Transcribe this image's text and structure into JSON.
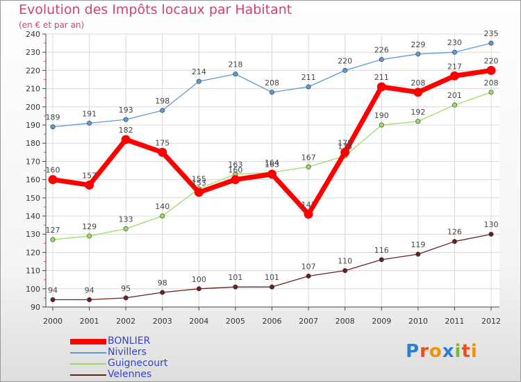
{
  "title": "Evolution des Impôts locaux par Habitant",
  "subtitle": "(en € et par an)",
  "logo": "Proxiti",
  "chart_data": {
    "type": "line",
    "title": "Evolution des Impôts locaux par Habitant",
    "subtitle": "(en € et par an)",
    "xlabel": "",
    "ylabel": "",
    "x": [
      "2000",
      "2001",
      "2002",
      "2003",
      "2004",
      "2005",
      "2006",
      "2007",
      "2008",
      "2009",
      "2010",
      "2011",
      "2012"
    ],
    "ylim": [
      90,
      240
    ],
    "yticks": [
      90,
      100,
      110,
      120,
      130,
      140,
      150,
      160,
      170,
      180,
      190,
      200,
      210,
      220,
      230,
      240
    ],
    "grid": true,
    "legend_position": "bottom-left",
    "series": [
      {
        "name": "BONLIER",
        "color": "#ff0000",
        "values": [
          160,
          157,
          182,
          175,
          153,
          160,
          163,
          141,
          175,
          211,
          208,
          217,
          220
        ]
      },
      {
        "name": "Nivillers",
        "color": "#5b9bd5",
        "values": [
          189,
          191,
          193,
          198,
          214,
          218,
          208,
          211,
          220,
          226,
          229,
          230,
          235
        ]
      },
      {
        "name": "Guignecourt",
        "color": "#99dd66",
        "values": [
          127,
          129,
          133,
          140,
          155,
          163,
          164,
          167,
          173,
          190,
          192,
          201,
          208
        ]
      },
      {
        "name": "Velennes",
        "color": "#6b1f1f",
        "values": [
          94,
          94,
          95,
          98,
          100,
          101,
          101,
          107,
          110,
          116,
          119,
          126,
          130
        ]
      }
    ]
  }
}
